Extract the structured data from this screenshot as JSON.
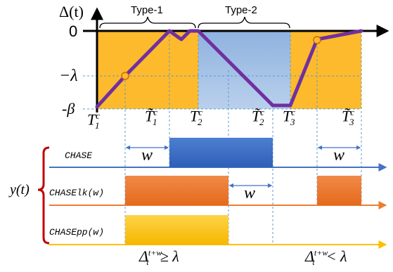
{
  "colors": {
    "gold": "#FDBA2C",
    "blue_region": "#9BBCE0",
    "purple": "#7030A0",
    "chase_blue": "#4472C4",
    "chase_orange": "#ED7D31",
    "chase_yellow": "#FFC000",
    "brace_red": "#C00000",
    "dash": "#5B9BD5",
    "marker": "#FFC000"
  },
  "top": {
    "y_axis_label": "Δ(t)",
    "zero_label": "0",
    "lambda_label": "−λ",
    "beta_label": "-β",
    "type1_label": "Type-1",
    "type2_label": "Type-2",
    "t1c_base": "T",
    "t1c_sup": "c",
    "t1c_sub": "1",
    "t1c_tilde_base": "T̃",
    "t1c_tilde_sup": "c",
    "t1c_tilde_sub": "1",
    "t2c_base": "T",
    "t2c_sup": "c",
    "t2c_sub": "2",
    "t2c_tilde_base": "T̃",
    "t2c_tilde_sup": "c",
    "t2c_tilde_sub": "2",
    "t3c_base": "T",
    "t3c_sup": "c",
    "t3c_sub": "3",
    "t3c_tilde_base": "T̃",
    "t3c_tilde_sup": "c",
    "t3c_tilde_sub": "3"
  },
  "bottom": {
    "y_label": "y(t)",
    "chase_label": "CHASE",
    "chaselk_label": "CHASElk(w)",
    "chasepp_label": "CHASEpp(w)",
    "w_label": "w",
    "cond_left_base": "Δ",
    "cond_left_sub": "t",
    "cond_left_sup": "t+w",
    "cond_left_op": "≥ λ",
    "cond_right_base": "Δ",
    "cond_right_sub": "t",
    "cond_right_sup": "t+w",
    "cond_right_op": "< λ"
  }
}
